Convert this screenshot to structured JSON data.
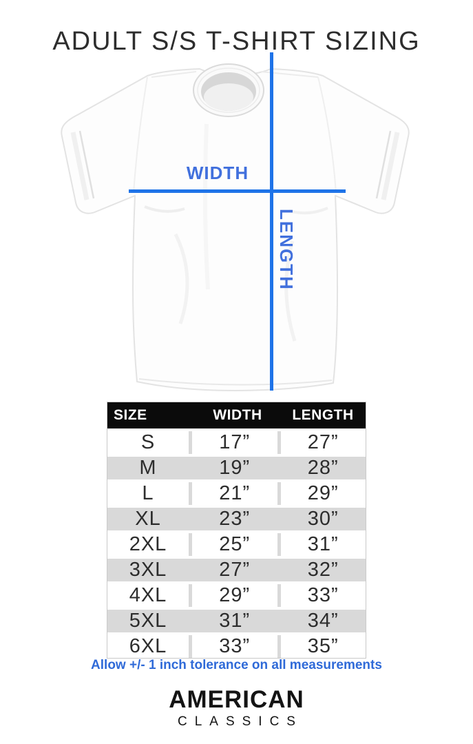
{
  "page": {
    "title": "ADULT S/S T-SHIRT SIZING"
  },
  "diagram": {
    "width_label": "WIDTH",
    "length_label": "LENGTH",
    "line_color": "#1e73e8",
    "label_color": "#4170dd"
  },
  "size_chart": {
    "headers": [
      "SIZE",
      "WIDTH",
      "LENGTH"
    ],
    "rows": [
      {
        "size": "S",
        "width": "17”",
        "length": "27”"
      },
      {
        "size": "M",
        "width": "19”",
        "length": "28”"
      },
      {
        "size": "L",
        "width": "21”",
        "length": "29”"
      },
      {
        "size": "XL",
        "width": "23”",
        "length": "30”"
      },
      {
        "size": "2XL",
        "width": "25”",
        "length": "31”"
      },
      {
        "size": "3XL",
        "width": "27”",
        "length": "32”"
      },
      {
        "size": "4XL",
        "width": "29”",
        "length": "33”"
      },
      {
        "size": "5XL",
        "width": "31”",
        "length": "34”"
      },
      {
        "size": "6XL",
        "width": "33”",
        "length": "35”"
      }
    ],
    "header_bg": "#0b0b0b",
    "header_text_color": "#ffffff",
    "stripe_color": "#d9d9d9"
  },
  "note": {
    "text": "Allow +/- 1 inch tolerance on all measurements",
    "color": "#2f6ad8"
  },
  "brand": {
    "line1": "AMERICAN",
    "line2": "CLASSICS"
  },
  "chart_data": {
    "type": "table",
    "title": "ADULT S/S T-SHIRT SIZING",
    "columns": [
      "SIZE",
      "WIDTH",
      "LENGTH"
    ],
    "rows": [
      [
        "S",
        "17\"",
        "27\""
      ],
      [
        "M",
        "19\"",
        "28\""
      ],
      [
        "L",
        "21\"",
        "29\""
      ],
      [
        "XL",
        "23\"",
        "30\""
      ],
      [
        "2XL",
        "25\"",
        "31\""
      ],
      [
        "3XL",
        "27\"",
        "32\""
      ],
      [
        "4XL",
        "29\"",
        "33\""
      ],
      [
        "5XL",
        "31\"",
        "34\""
      ],
      [
        "6XL",
        "33\"",
        "35\""
      ]
    ],
    "annotations": [
      "WIDTH",
      "LENGTH",
      "Allow +/- 1 inch tolerance on all measurements"
    ]
  }
}
